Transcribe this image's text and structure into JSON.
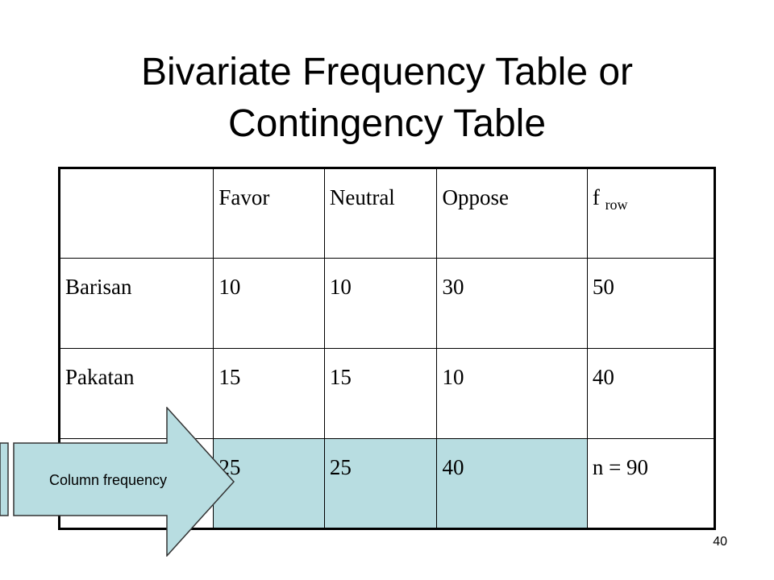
{
  "slide": {
    "title_line1": "Bivariate Frequency Table or",
    "title_line2": "Contingency Table",
    "page_number": "40",
    "callout_label": "Column frequency",
    "highlight_color": "#b8dde1"
  },
  "table": {
    "header": {
      "blank": "",
      "favor": "Favor",
      "neutral": "Neutral",
      "oppose": "Oppose",
      "f_row_main": "f",
      "f_row_sub": "row"
    },
    "rows": [
      {
        "label": "Barisan",
        "favor": "10",
        "neutral": "10",
        "oppose": "30",
        "total": "50"
      },
      {
        "label": "Pakatan",
        "favor": "15",
        "neutral": "15",
        "oppose": "10",
        "total": "40"
      }
    ],
    "totals": {
      "label": "",
      "favor": "25",
      "neutral": "25",
      "oppose": "40",
      "total": "n = 90"
    }
  }
}
